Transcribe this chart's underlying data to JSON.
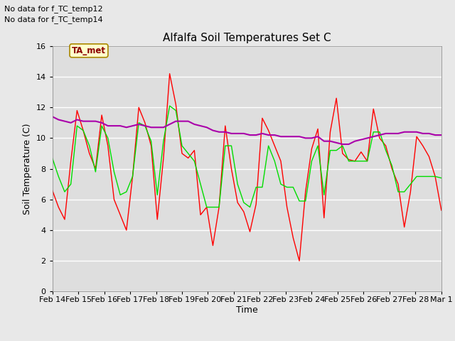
{
  "title": "Alfalfa Soil Temperatures Set C",
  "xlabel": "Time",
  "ylabel": "Soil Temperature (C)",
  "no_data_text": [
    "No data for f_TC_temp12",
    "No data for f_TC_temp14"
  ],
  "ta_met_label": "TA_met",
  "ylim": [
    0,
    16
  ],
  "yticks": [
    0,
    2,
    4,
    6,
    8,
    10,
    12,
    14,
    16
  ],
  "fig_bg_color": "#e8e8e8",
  "plot_bg_color": "#dedede",
  "legend_bg_color": "#ffffff",
  "line_2cm_color": "#ff0000",
  "line_8cm_color": "#00dd00",
  "line_32cm_color": "#aa00aa",
  "xtick_labels": [
    "Feb 14",
    "Feb 15",
    "Feb 16",
    "Feb 17",
    "Feb 18",
    "Feb 19",
    "Feb 20",
    "Feb 21",
    "Feb 22",
    "Feb 23",
    "Feb 24",
    "Feb 25",
    "Feb 26",
    "Feb 27",
    "Feb 28",
    "Mar 1"
  ],
  "data_2cm": [
    6.6,
    5.5,
    4.7,
    8.5,
    11.8,
    10.5,
    9.0,
    8.0,
    11.5,
    9.5,
    6.0,
    5.0,
    4.0,
    7.5,
    12.0,
    11.0,
    9.5,
    4.7,
    8.7,
    14.2,
    12.2,
    9.0,
    8.7,
    9.2,
    5.0,
    5.5,
    3.0,
    5.5,
    10.8,
    8.0,
    5.8,
    5.2,
    3.9,
    5.7,
    11.3,
    10.5,
    9.5,
    8.5,
    5.5,
    3.5,
    2.0,
    6.5,
    9.3,
    10.6,
    4.8,
    10.4,
    12.6,
    9.0,
    8.6,
    8.5,
    9.1,
    8.5,
    11.9,
    10.0,
    9.5,
    8.0,
    7.0,
    4.2,
    6.5,
    10.1,
    9.5,
    8.8,
    7.5,
    5.3
  ],
  "data_8cm": [
    8.7,
    7.5,
    6.5,
    7.0,
    10.8,
    10.5,
    9.5,
    7.8,
    10.8,
    10.0,
    7.8,
    6.3,
    6.5,
    7.5,
    11.0,
    10.8,
    9.8,
    6.3,
    9.8,
    12.1,
    11.8,
    9.5,
    9.0,
    8.5,
    7.0,
    5.5,
    5.5,
    5.5,
    9.5,
    9.5,
    7.0,
    5.8,
    5.5,
    6.8,
    6.8,
    9.5,
    8.5,
    7.0,
    6.8,
    6.8,
    5.9,
    5.9,
    8.5,
    9.5,
    6.3,
    9.2,
    9.2,
    9.5,
    8.5,
    8.5,
    8.5,
    8.5,
    10.4,
    10.4,
    9.2,
    8.2,
    6.5,
    6.5,
    7.0,
    7.5,
    7.5,
    7.5,
    7.5,
    7.4
  ],
  "data_32cm": [
    11.4,
    11.2,
    11.1,
    11.0,
    11.2,
    11.1,
    11.1,
    11.1,
    11.0,
    10.8,
    10.8,
    10.8,
    10.7,
    10.8,
    10.9,
    10.8,
    10.7,
    10.7,
    10.7,
    10.9,
    11.1,
    11.1,
    11.1,
    10.9,
    10.8,
    10.7,
    10.5,
    10.4,
    10.4,
    10.3,
    10.3,
    10.3,
    10.2,
    10.2,
    10.3,
    10.2,
    10.2,
    10.1,
    10.1,
    10.1,
    10.1,
    10.0,
    10.0,
    10.1,
    9.8,
    9.8,
    9.7,
    9.6,
    9.6,
    9.8,
    9.9,
    10.0,
    10.1,
    10.2,
    10.3,
    10.3,
    10.3,
    10.4,
    10.4,
    10.4,
    10.3,
    10.3,
    10.2,
    10.2
  ]
}
